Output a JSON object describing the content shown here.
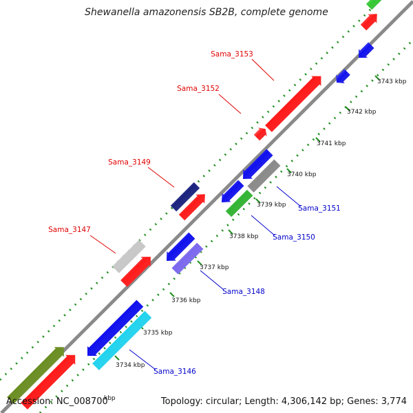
{
  "title": "Shewanella amazonensis SB2B, complete genome",
  "footer": {
    "accession": "Accession: NC_008700",
    "summary": "Topology: circular; Length: 4,306,142 bp; Genes: 3,774"
  },
  "colors": {
    "background": "#ffffff",
    "backbone": "#8a8a8a",
    "tick_marks": "#1f8f1f",
    "label_forward": "#e00000",
    "label_reverse": "#0000cc",
    "leader_forward": "#e00000",
    "leader_reverse": "#0000cc"
  },
  "ticks": [
    {
      "label": "3734 kbp"
    },
    {
      "label": "3735 kbp"
    },
    {
      "label": "3736 kbp"
    },
    {
      "label": "3737 kbp"
    },
    {
      "label": "3738 kbp"
    },
    {
      "label": "3739 kbp"
    },
    {
      "label": "3740 kbp"
    },
    {
      "label": "3741 kbp"
    },
    {
      "label": "3742 kbp"
    },
    {
      "label": "3743 kbp"
    }
  ],
  "partial_tick_label": "kbp",
  "gene_labels": [
    {
      "name": "Sama_3153",
      "strand": "forward"
    },
    {
      "name": "Sama_3152",
      "strand": "forward"
    },
    {
      "name": "Sama_3149",
      "strand": "forward"
    },
    {
      "name": "Sama_3147",
      "strand": "forward"
    },
    {
      "name": "Sama_3151",
      "strand": "reverse"
    },
    {
      "name": "Sama_3150",
      "strand": "reverse"
    },
    {
      "name": "Sama_3148",
      "strand": "reverse"
    },
    {
      "name": "Sama_3146",
      "strand": "reverse"
    }
  ],
  "features": [
    {
      "track": "outer-forward",
      "color": "#6b8e23",
      "name": "olive-feature"
    },
    {
      "track": "forward",
      "color": "#ff1a1a",
      "name": "red-cds"
    },
    {
      "track": "forward",
      "color": "#c8c8c8",
      "name": "grey-feature"
    },
    {
      "track": "forward",
      "color": "#ff1a1a",
      "name": "red-cds"
    },
    {
      "track": "outer-forward",
      "color": "#1a237e",
      "name": "navy-feature"
    },
    {
      "track": "forward",
      "color": "#ff1a1a",
      "name": "red-cds"
    },
    {
      "track": "forward",
      "color": "#ff1a1a",
      "name": "red-cds"
    },
    {
      "track": "forward",
      "color": "#ff1a1a",
      "name": "red-cds"
    },
    {
      "track": "reverse",
      "color": "#1010ee",
      "name": "blue-cds"
    },
    {
      "track": "outer-reverse",
      "color": "#22d3ee",
      "name": "cyan-feature"
    },
    {
      "track": "reverse",
      "color": "#1010ee",
      "name": "blue-cds"
    },
    {
      "track": "outer-reverse",
      "color": "#7b68ee",
      "name": "purple-feature"
    },
    {
      "track": "reverse",
      "color": "#1010ee",
      "name": "blue-cds"
    },
    {
      "track": "outer-reverse",
      "color": "#32b432",
      "name": "green-feature"
    },
    {
      "track": "reverse",
      "color": "#1010ee",
      "name": "blue-cds"
    },
    {
      "track": "outer-reverse",
      "color": "#8a8a8a",
      "name": "grey-feature"
    },
    {
      "track": "reverse",
      "color": "#1010ee",
      "name": "blue-cds"
    },
    {
      "track": "reverse",
      "color": "#1010ee",
      "name": "blue-cds"
    },
    {
      "track": "outer-forward",
      "color": "#32c832",
      "name": "green-feature"
    },
    {
      "track": "forward",
      "color": "#ff1a1a",
      "name": "red-cds"
    }
  ]
}
